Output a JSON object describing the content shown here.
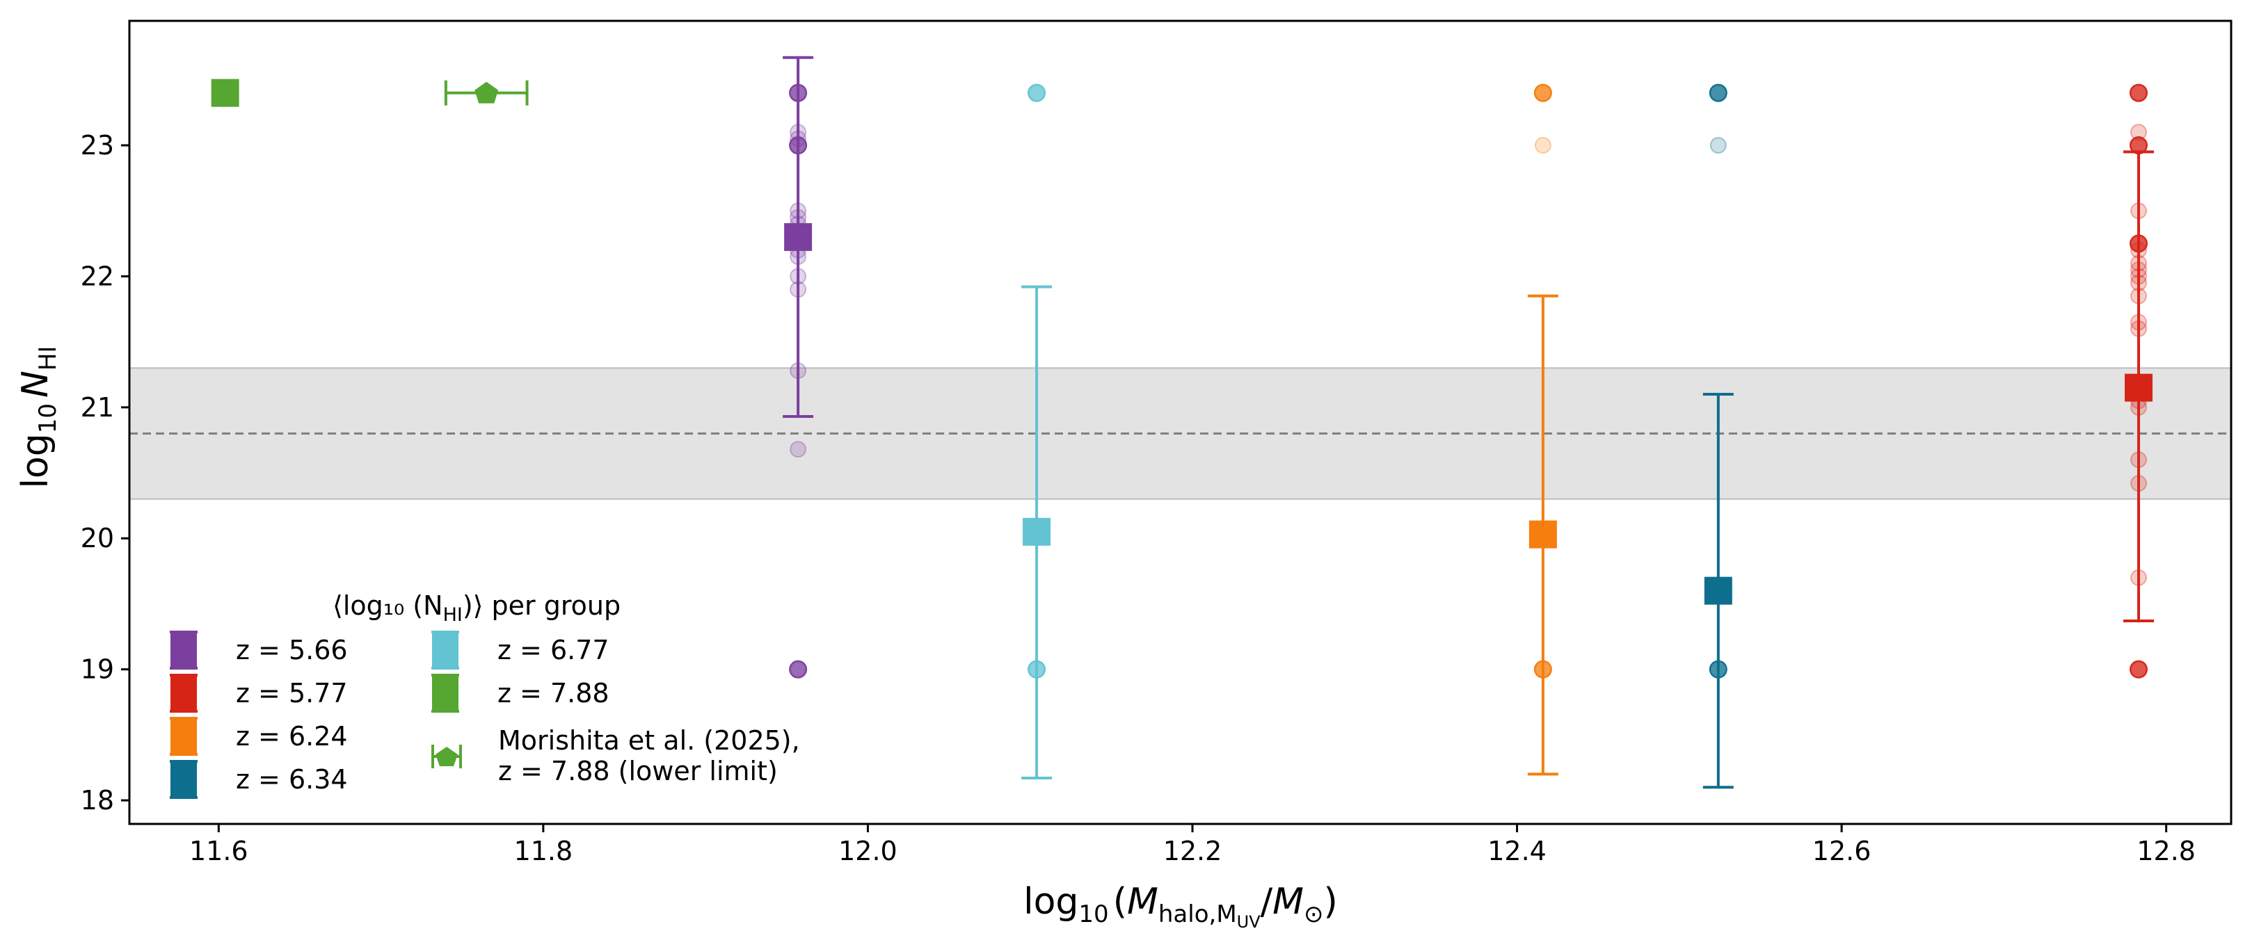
{
  "chart_data": {
    "type": "scatter",
    "xlim": [
      11.545,
      12.84
    ],
    "ylim": [
      17.82,
      23.95
    ],
    "xticks": [
      11.6,
      11.8,
      12.0,
      12.2,
      12.4,
      12.6,
      12.8
    ],
    "xtick_labels": [
      "11.6",
      "11.8",
      "12.0",
      "12.2",
      "12.4",
      "12.6",
      "12.8"
    ],
    "yticks": [
      18,
      19,
      20,
      21,
      22,
      23
    ],
    "ytick_labels": [
      "18",
      "19",
      "20",
      "21",
      "22",
      "23"
    ],
    "xlabel": {
      "prefix": "log",
      "sub10": "10",
      "open": "(",
      "M": "M",
      "msub1": "halo,",
      "msub2": "M",
      "msub3": "UV",
      "slash": "/",
      "M2": "M",
      "sun": "⊙",
      "close": ")"
    },
    "ylabel": {
      "prefix": "log",
      "sub10": "10",
      "N": "N",
      "nsub": "HI"
    },
    "reference_band": {
      "center": 20.8,
      "low": 20.3,
      "high": 21.3,
      "color": "#d0d0d0",
      "line_color": "#808080"
    },
    "groups": [
      {
        "name": "z = 5.66",
        "color": "#7b3f9e",
        "x": 11.957,
        "mean": 22.3,
        "err_low": 20.93,
        "err_high": 23.67,
        "points": [
          23.4,
          23.1,
          23.05,
          23.0,
          22.5,
          22.45,
          22.4,
          22.2,
          22.15,
          22.0,
          21.9,
          21.28,
          20.68,
          19.0
        ],
        "emphasized": [
          23.4,
          23.0,
          19.0
        ]
      },
      {
        "name": "z = 5.77",
        "color": "#d62417",
        "x": 12.783,
        "mean": 21.15,
        "err_low": 19.37,
        "err_high": 22.95,
        "points": [
          23.4,
          23.1,
          23.0,
          22.5,
          22.25,
          22.2,
          22.1,
          22.05,
          22.0,
          21.95,
          21.85,
          21.65,
          21.6,
          21.15,
          21.05,
          21.0,
          20.6,
          20.42,
          19.7,
          19.0
        ],
        "emphasized": [
          23.4,
          23.0,
          22.25,
          19.0
        ]
      },
      {
        "name": "z = 6.24",
        "color": "#f57e0e",
        "x": 12.416,
        "mean": 20.03,
        "err_low": 18.2,
        "err_high": 21.85,
        "points": [
          23.4,
          23.0,
          19.0
        ],
        "emphasized": [
          23.4,
          19.0
        ]
      },
      {
        "name": "z = 6.34",
        "color": "#0e6e8e",
        "x": 12.524,
        "mean": 19.6,
        "err_low": 18.1,
        "err_high": 21.1,
        "points": [
          23.4,
          23.0,
          19.0
        ],
        "emphasized": [
          23.4,
          19.0
        ]
      },
      {
        "name": "z = 6.77",
        "color": "#62c4d2",
        "x": 12.104,
        "mean": 20.05,
        "err_low": 18.17,
        "err_high": 21.92,
        "points": [
          23.4,
          19.0
        ],
        "emphasized": [
          23.4,
          19.0
        ]
      },
      {
        "name": "z = 7.88",
        "color": "#56a632",
        "x": 11.604,
        "mean": 23.4,
        "err_low": 23.4,
        "err_high": 23.4,
        "points": [],
        "emphasized": []
      }
    ],
    "morishita": {
      "x": 11.765,
      "y": 23.4,
      "x_err_low": 11.74,
      "x_err_high": 11.79,
      "color": "#56a632"
    },
    "legend": {
      "title": "⟨log₁₀ (N",
      "title_sub": "HI",
      "title_end": ")⟩ per group",
      "col1": [
        "z = 5.66",
        "z = 5.77",
        "z = 6.24",
        "z = 6.34"
      ],
      "col2": [
        "z = 6.77",
        "z = 7.88"
      ],
      "morishita_line1": "Morishita et al. (2025),",
      "morishita_line2": "z = 7.88 (lower limit)"
    }
  }
}
